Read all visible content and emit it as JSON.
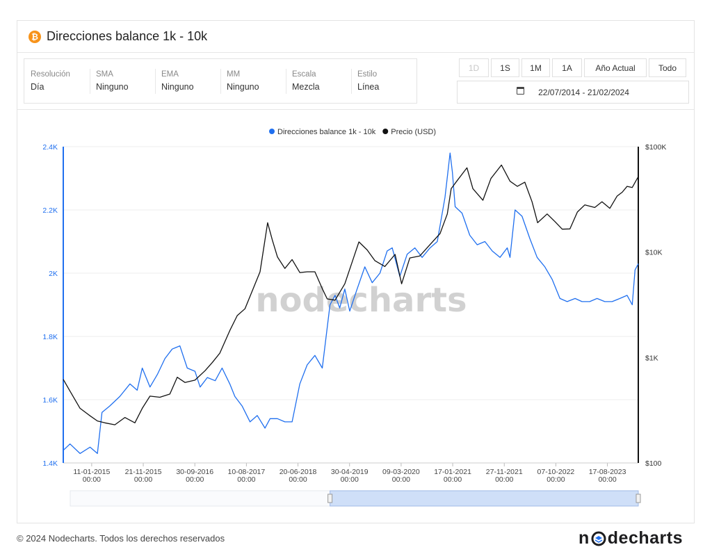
{
  "card": {
    "title": "Direcciones balance 1k - 10k",
    "icon": "bitcoin-icon"
  },
  "settings": [
    {
      "label": "Resolución",
      "value": "Día"
    },
    {
      "label": "SMA",
      "value": "Ninguno"
    },
    {
      "label": "EMA",
      "value": "Ninguno"
    },
    {
      "label": "MM",
      "value": "Ninguno"
    },
    {
      "label": "Escala",
      "value": "Mezcla"
    },
    {
      "label": "Estilo",
      "value": "Línea"
    }
  ],
  "range_buttons": [
    {
      "label": "1D",
      "disabled": true
    },
    {
      "label": "1S",
      "disabled": false
    },
    {
      "label": "1M",
      "disabled": false
    },
    {
      "label": "1A",
      "disabled": false
    },
    {
      "label": "Año Actual",
      "disabled": false
    },
    {
      "label": "Todo",
      "disabled": false
    }
  ],
  "date_range": {
    "icon": "calendar-icon",
    "value": "22/07/2014 - 21/02/2024"
  },
  "watermark": "nodecharts",
  "footer": {
    "copyright": "© 2024 Nodecharts. Todos los derechos reservados",
    "logo_text_left": "n",
    "logo_text_right": "decharts"
  },
  "colors": {
    "addresses": "#1f6fef",
    "price": "#111111",
    "bitcoin": "#f7931a",
    "navigator_fill": "#cfdff8"
  },
  "chart_data": {
    "type": "line",
    "legend": [
      {
        "name": "Direcciones balance 1k - 10k",
        "color": "#1f6fef"
      },
      {
        "name": "Precio (USD)",
        "color": "#111111"
      }
    ],
    "legend_position": "top-center",
    "grid": true,
    "x_range": [
      "2014-07-22",
      "2024-02-21"
    ],
    "x_ticks": [
      [
        "11-01-2015",
        "00:00"
      ],
      [
        "21-11-2015",
        "00:00"
      ],
      [
        "30-09-2016",
        "00:00"
      ],
      [
        "10-08-2017",
        "00:00"
      ],
      [
        "20-06-2018",
        "00:00"
      ],
      [
        "30-04-2019",
        "00:00"
      ],
      [
        "09-03-2020",
        "00:00"
      ],
      [
        "17-01-2021",
        "00:00"
      ],
      [
        "27-11-2021",
        "00:00"
      ],
      [
        "07-10-2022",
        "00:00"
      ],
      [
        "17-08-2023",
        "00:00"
      ]
    ],
    "y_left": {
      "scale": "linear",
      "ylim": [
        1400,
        2400
      ],
      "ticks": [
        "1.4K",
        "1.6K",
        "1.8K",
        "2K",
        "2.2K",
        "2.4K"
      ],
      "tick_values": [
        1400,
        1600,
        1800,
        2000,
        2200,
        2400
      ]
    },
    "y_right": {
      "scale": "log",
      "ylim": [
        100,
        100000
      ],
      "ticks": [
        "$100",
        "$1K",
        "$10K",
        "$100K"
      ],
      "tick_values": [
        100,
        1000,
        10000,
        100000
      ]
    },
    "series": [
      {
        "name": "Direcciones balance 1k - 10k",
        "axis": "left",
        "x": [
          "2014-07-22",
          "2014-09-01",
          "2014-11-01",
          "2015-01-01",
          "2015-02-15",
          "2015-03-15",
          "2015-05-01",
          "2015-07-01",
          "2015-09-01",
          "2015-10-15",
          "2015-11-15",
          "2016-01-01",
          "2016-02-15",
          "2016-04-01",
          "2016-05-15",
          "2016-07-01",
          "2016-08-15",
          "2016-10-01",
          "2016-11-01",
          "2016-12-15",
          "2017-02-01",
          "2017-03-15",
          "2017-05-01",
          "2017-06-01",
          "2017-07-15",
          "2017-09-01",
          "2017-10-15",
          "2017-12-01",
          "2018-01-01",
          "2018-02-15",
          "2018-04-01",
          "2018-05-15",
          "2018-07-01",
          "2018-08-15",
          "2018-10-01",
          "2018-11-15",
          "2019-01-01",
          "2019-02-01",
          "2019-03-01",
          "2019-04-01",
          "2019-05-01",
          "2019-06-15",
          "2019-08-01",
          "2019-09-15",
          "2019-11-01",
          "2019-12-15",
          "2020-01-15",
          "2020-03-01",
          "2020-04-15",
          "2020-06-01",
          "2020-07-15",
          "2020-09-01",
          "2020-10-15",
          "2020-12-01",
          "2021-01-01",
          "2021-01-15",
          "2021-02-01",
          "2021-03-15",
          "2021-05-01",
          "2021-06-15",
          "2021-08-01",
          "2021-09-15",
          "2021-11-01",
          "2021-12-15",
          "2022-01-01",
          "2022-02-01",
          "2022-03-15",
          "2022-05-01",
          "2022-06-15",
          "2022-08-01",
          "2022-09-15",
          "2022-11-01",
          "2022-12-15",
          "2023-02-01",
          "2023-03-15",
          "2023-05-01",
          "2023-06-15",
          "2023-08-01",
          "2023-09-15",
          "2023-11-01",
          "2023-12-15",
          "2024-01-15",
          "2024-02-01",
          "2024-02-21"
        ],
        "values": [
          1440,
          1460,
          1430,
          1450,
          1430,
          1560,
          1580,
          1610,
          1650,
          1630,
          1700,
          1640,
          1680,
          1730,
          1760,
          1770,
          1700,
          1690,
          1640,
          1670,
          1660,
          1700,
          1650,
          1610,
          1580,
          1530,
          1550,
          1510,
          1540,
          1540,
          1530,
          1530,
          1650,
          1710,
          1740,
          1700,
          1900,
          1930,
          1890,
          1950,
          1880,
          1950,
          2020,
          1970,
          2000,
          2070,
          2080,
          1990,
          2060,
          2080,
          2050,
          2080,
          2100,
          2240,
          2380,
          2320,
          2210,
          2190,
          2120,
          2090,
          2100,
          2070,
          2050,
          2080,
          2050,
          2200,
          2180,
          2110,
          2050,
          2020,
          1980,
          1920,
          1910,
          1920,
          1910,
          1910,
          1920,
          1910,
          1910,
          1920,
          1930,
          1900,
          2010,
          2030
        ]
      },
      {
        "name": "Precio (USD)",
        "axis": "right",
        "x": [
          "2014-07-22",
          "2014-09-01",
          "2014-11-01",
          "2015-01-01",
          "2015-02-15",
          "2015-04-01",
          "2015-06-01",
          "2015-08-01",
          "2015-10-01",
          "2015-11-15",
          "2016-01-01",
          "2016-03-01",
          "2016-05-01",
          "2016-06-15",
          "2016-08-01",
          "2016-10-01",
          "2016-12-01",
          "2017-01-15",
          "2017-03-01",
          "2017-05-01",
          "2017-06-15",
          "2017-08-01",
          "2017-09-15",
          "2017-11-01",
          "2017-12-17",
          "2018-01-15",
          "2018-02-15",
          "2018-04-01",
          "2018-05-15",
          "2018-07-01",
          "2018-08-15",
          "2018-10-01",
          "2018-11-15",
          "2018-12-15",
          "2019-02-01",
          "2019-04-01",
          "2019-05-15",
          "2019-06-26",
          "2019-08-15",
          "2019-10-01",
          "2019-12-01",
          "2020-02-01",
          "2020-03-12",
          "2020-05-01",
          "2020-07-01",
          "2020-09-01",
          "2020-11-01",
          "2020-12-15",
          "2021-01-08",
          "2021-02-15",
          "2021-04-14",
          "2021-05-20",
          "2021-07-20",
          "2021-09-07",
          "2021-11-10",
          "2022-01-01",
          "2022-02-15",
          "2022-04-01",
          "2022-05-15",
          "2022-06-18",
          "2022-08-15",
          "2022-10-01",
          "2022-11-15",
          "2023-01-01",
          "2023-02-15",
          "2023-04-01",
          "2023-06-01",
          "2023-07-15",
          "2023-09-01",
          "2023-10-15",
          "2023-11-15",
          "2023-12-15",
          "2024-01-15",
          "2024-02-21"
        ],
        "values": [
          620,
          480,
          330,
          280,
          250,
          240,
          230,
          270,
          240,
          330,
          430,
          420,
          450,
          650,
          580,
          610,
          750,
          900,
          1100,
          1800,
          2500,
          2900,
          4300,
          6500,
          19000,
          13000,
          9000,
          7000,
          8500,
          6400,
          6500,
          6500,
          4500,
          3600,
          3500,
          5000,
          8000,
          12500,
          10500,
          8300,
          7300,
          9500,
          5000,
          8800,
          9200,
          11800,
          15000,
          23000,
          40000,
          48000,
          63000,
          40000,
          31000,
          50000,
          67000,
          47000,
          42000,
          46000,
          30000,
          19000,
          23000,
          19500,
          16500,
          16600,
          24000,
          28000,
          26500,
          30000,
          26000,
          34000,
          37000,
          42000,
          41000,
          52000
        ]
      }
    ],
    "navigator": {
      "window_start": "2019-01-01",
      "window_end": "2024-02-21"
    }
  }
}
